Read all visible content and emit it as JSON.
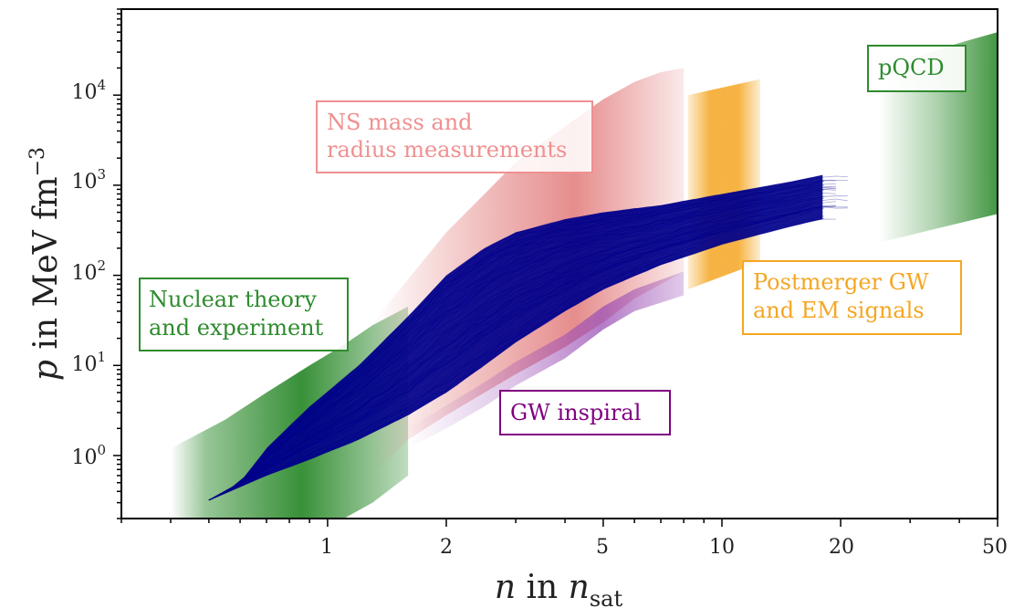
{
  "chart_data": {
    "type": "area",
    "xscale": "log",
    "yscale": "log",
    "xlim": [
      0.3,
      50
    ],
    "ylim": [
      0.2,
      90000
    ],
    "x_tick_labels": [
      {
        "value": 1,
        "label": "1"
      },
      {
        "value": 2,
        "label": "2"
      },
      {
        "value": 5,
        "label": "5"
      },
      {
        "value": 10,
        "label": "10"
      },
      {
        "value": 20,
        "label": "20"
      },
      {
        "value": 50,
        "label": "50"
      }
    ],
    "y_tick_labels": [
      {
        "value": 1,
        "base": "10",
        "exp": "0"
      },
      {
        "value": 10,
        "base": "10",
        "exp": "1"
      },
      {
        "value": 100,
        "base": "10",
        "exp": "2"
      },
      {
        "value": 1000,
        "base": "10",
        "exp": "3"
      },
      {
        "value": 10000,
        "base": "10",
        "exp": "4"
      }
    ],
    "xlabel": {
      "main": "n",
      "mid": " in ",
      "var": "n",
      "sub": "sat"
    },
    "ylabel": {
      "main": "p",
      "mid": " in MeV fm",
      "sup": "−3"
    },
    "bands": [
      {
        "name": "Nuclear theory and experiment",
        "color": "#2e8b2e",
        "x": [
          0.4,
          0.55,
          0.7,
          0.9,
          1.1,
          1.3,
          1.6
        ],
        "lower": [
          0.2,
          0.2,
          0.2,
          0.2,
          0.2,
          0.3,
          0.6
        ],
        "upper": [
          1.2,
          2.5,
          5,
          10,
          17,
          28,
          45
        ]
      },
      {
        "name": "NS mass and radius measurements",
        "color": "#e07070",
        "x": [
          1.3,
          1.6,
          2,
          2.5,
          3,
          4,
          5,
          6,
          7,
          8
        ],
        "lower": [
          0.6,
          1.5,
          2.8,
          5,
          8,
          16,
          30,
          55,
          80,
          110
        ],
        "upper": [
          30,
          90,
          300,
          800,
          1800,
          4500,
          9000,
          14000,
          18000,
          20000
        ]
      },
      {
        "name": "GW inspiral",
        "color": "#9b4fb5",
        "x": [
          1.6,
          2,
          2.5,
          3,
          4,
          5,
          6,
          8
        ],
        "lower": [
          1.2,
          2,
          3.5,
          6,
          12,
          25,
          40,
          60
        ],
        "upper": [
          2,
          3.6,
          6.5,
          11,
          22,
          45,
          70,
          110
        ]
      },
      {
        "name": "Postmerger GW and EM signals",
        "color": "#f5a623",
        "x": [
          8.2,
          12.5
        ],
        "lower": [
          70,
          140
        ],
        "upper": [
          10000,
          15000
        ]
      },
      {
        "name": "pQCD",
        "color": "#2e8b2e",
        "x": [
          25,
          30,
          40,
          50
        ],
        "lower": [
          230,
          280,
          380,
          480
        ],
        "upper": [
          18000,
          25000,
          38000,
          50000
        ]
      }
    ],
    "eos_envelope": {
      "color": "#00008b",
      "x": [
        0.3,
        0.5,
        0.6,
        0.7,
        0.9,
        1.2,
        1.6,
        2,
        2.5,
        3,
        4,
        5,
        7,
        10,
        15,
        18
      ],
      "lower": [
        0.2,
        0.32,
        0.45,
        0.6,
        0.9,
        1.5,
        2.8,
        5,
        10,
        18,
        40,
        70,
        130,
        220,
        350,
        420
      ],
      "upper": [
        0.2,
        0.32,
        0.5,
        1.2,
        3.5,
        10,
        35,
        100,
        200,
        300,
        420,
        500,
        600,
        800,
        1100,
        1300
      ]
    }
  },
  "annotations": [
    {
      "id": "nuclear",
      "lines": [
        "Nuclear theory",
        "and experiment"
      ],
      "color": "#2e8b2e",
      "border": "#2e8b2e"
    },
    {
      "id": "ns",
      "lines": [
        "NS mass and",
        "radius measurements"
      ],
      "color": "#f09090",
      "border": "#f09090"
    },
    {
      "id": "postmerger",
      "lines": [
        "Postmerger GW",
        "and EM signals"
      ],
      "color": "#f5a623",
      "border": "#f5a623"
    },
    {
      "id": "gw",
      "lines": [
        "GW inspiral"
      ],
      "color": "#800080",
      "border": "#800080"
    },
    {
      "id": "pqcd",
      "lines": [
        "pQCD"
      ],
      "color": "#2e8b2e",
      "border": "#2e8b2e"
    }
  ]
}
